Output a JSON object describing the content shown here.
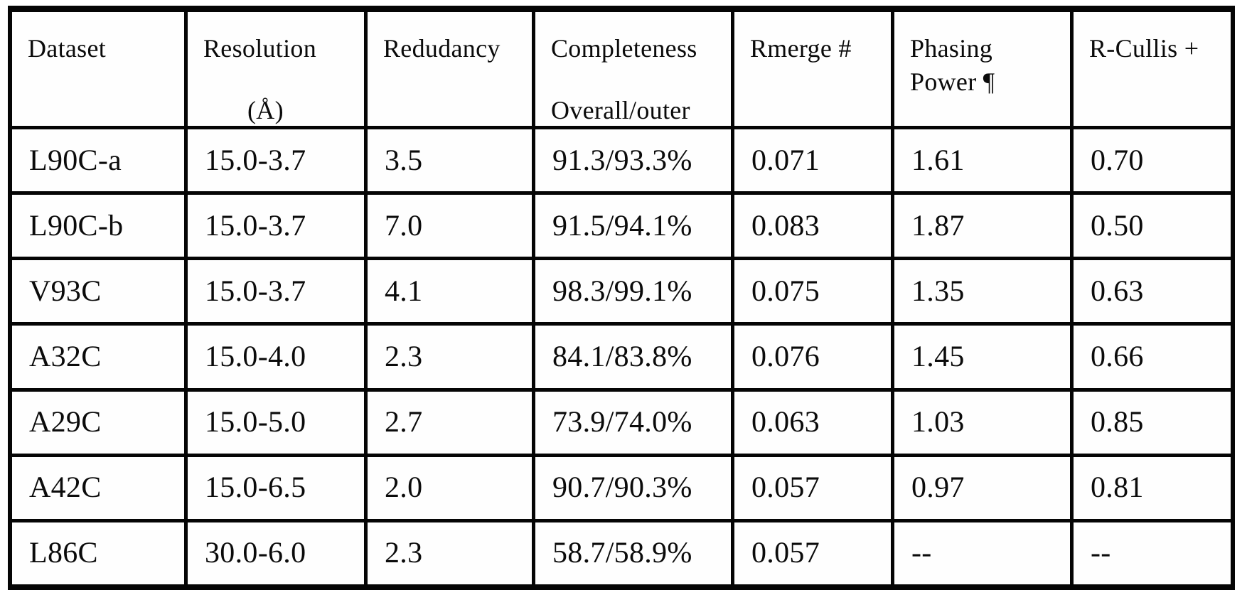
{
  "colors": {
    "ink": "#0b0b0b",
    "paper": "#ffffff",
    "grid_line": "#050505"
  },
  "table": {
    "header": [
      {
        "line1": "Dataset"
      },
      {
        "line1": "Resolution",
        "line2": "(Å)"
      },
      {
        "line1": "Redudancy"
      },
      {
        "line1": "Completeness",
        "line2": "Overall/outer"
      },
      {
        "line1": "Rmerge #"
      },
      {
        "line1": "Phasing",
        "line2": "Power ¶"
      },
      {
        "line1": "R-Cullis +"
      }
    ],
    "rows": [
      [
        "L90C-a",
        "15.0-3.7",
        "3.5",
        "91.3/93.3%",
        "0.071",
        "1.61",
        "0.70"
      ],
      [
        "L90C-b",
        "15.0-3.7",
        "7.0",
        "91.5/94.1%",
        "0.083",
        "1.87",
        "0.50"
      ],
      [
        "V93C",
        "15.0-3.7",
        "4.1",
        "98.3/99.1%",
        "0.075",
        "1.35",
        "0.63"
      ],
      [
        "A32C",
        "15.0-4.0",
        "2.3",
        "84.1/83.8%",
        "0.076",
        "1.45",
        "0.66"
      ],
      [
        "A29C",
        "15.0-5.0",
        "2.7",
        "73.9/74.0%",
        "0.063",
        "1.03",
        "0.85"
      ],
      [
        "A42C",
        "15.0-6.5",
        "2.0",
        "90.7/90.3%",
        "0.057",
        "0.97",
        "0.81"
      ],
      [
        "L86C",
        "30.0-6.0",
        "2.3",
        "58.7/58.9%",
        "0.057",
        "--",
        "--"
      ]
    ]
  }
}
